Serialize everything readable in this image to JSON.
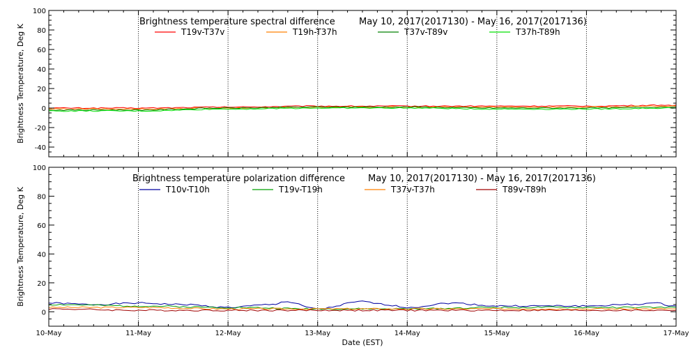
{
  "chart_data": [
    {
      "type": "line",
      "title": "Brightness temperature spectral difference",
      "subtitle": "May 10, 2017(2017130) - May 16, 2017(2017136)",
      "xlabel": "",
      "ylabel": "Brightness Temperature, Deg K",
      "xlim": [
        "2017-05-10",
        "2017-05-17"
      ],
      "ylim": [
        -50,
        100
      ],
      "yticks": [
        -40,
        -20,
        0,
        20,
        40,
        60,
        80,
        100
      ],
      "grid": "vertical dotted at each day",
      "legend": "top, horizontal",
      "series": [
        {
          "name": "T19v-T37v",
          "color": "#ff0000",
          "x": [
            "2017-05-10",
            "2017-05-11",
            "2017-05-12",
            "2017-05-13",
            "2017-05-14",
            "2017-05-15",
            "2017-05-16",
            "2017-05-17"
          ],
          "values": [
            0,
            0,
            1,
            2,
            2,
            2,
            2,
            3
          ]
        },
        {
          "name": "T19h-T37h",
          "color": "#ff8000",
          "x": [
            "2017-05-10",
            "2017-05-11",
            "2017-05-12",
            "2017-05-13",
            "2017-05-14",
            "2017-05-15",
            "2017-05-16",
            "2017-05-17"
          ],
          "values": [
            -1,
            -1,
            0,
            1,
            1,
            1,
            1,
            2
          ]
        },
        {
          "name": "T37v-T89v",
          "color": "#008000",
          "x": [
            "2017-05-10",
            "2017-05-11",
            "2017-05-12",
            "2017-05-13",
            "2017-05-14",
            "2017-05-15",
            "2017-05-16",
            "2017-05-17"
          ],
          "values": [
            -2,
            -2,
            0,
            1,
            1,
            0,
            0,
            1
          ]
        },
        {
          "name": "T37h-T89h",
          "color": "#00e000",
          "x": [
            "2017-05-10",
            "2017-05-11",
            "2017-05-12",
            "2017-05-13",
            "2017-05-14",
            "2017-05-15",
            "2017-05-16",
            "2017-05-17"
          ],
          "values": [
            -3,
            -3,
            -1,
            0,
            0,
            -1,
            -1,
            0
          ]
        }
      ]
    },
    {
      "type": "line",
      "title": "Brightness temperature polarization difference",
      "subtitle": "May 10, 2017(2017130) - May 16, 2017(2017136)",
      "xlabel": "Date (EST)",
      "ylabel": "Brightness Temperature, Deg K",
      "xlim": [
        "2017-05-10",
        "2017-05-17"
      ],
      "ylim": [
        -10,
        100
      ],
      "yticks": [
        0,
        20,
        40,
        60,
        80,
        100
      ],
      "xticks": [
        "10-May",
        "11-May",
        "12-May",
        "13-May",
        "14-May",
        "15-May",
        "16-May",
        "17-May"
      ],
      "grid": "vertical dotted at each day",
      "legend": "top, horizontal",
      "series": [
        {
          "name": "T10v-T10h",
          "color": "#0000a0",
          "x": [
            "2017-05-10",
            "2017-05-10 12:00",
            "2017-05-11",
            "2017-05-11 12:00",
            "2017-05-12",
            "2017-05-12 12:00",
            "2017-05-12 15:00",
            "2017-05-13",
            "2017-05-13 12:00",
            "2017-05-13 18:00",
            "2017-05-14",
            "2017-05-14 12:00",
            "2017-05-15",
            "2017-05-15 12:00",
            "2017-05-16",
            "2017-05-16 12:00",
            "2017-05-16 18:00",
            "2017-05-17"
          ],
          "values": [
            6,
            5,
            6,
            5,
            3,
            5,
            7,
            2,
            7,
            5,
            3,
            6,
            4,
            4,
            4,
            5,
            6,
            4
          ]
        },
        {
          "name": "T19v-T19h",
          "color": "#00a000",
          "x": [
            "2017-05-10",
            "2017-05-11",
            "2017-05-12",
            "2017-05-13",
            "2017-05-14",
            "2017-05-15",
            "2017-05-16",
            "2017-05-17"
          ],
          "values": [
            5,
            4,
            3,
            2,
            2,
            3,
            3,
            3
          ]
        },
        {
          "name": "T37v-T37h",
          "color": "#ff8000",
          "x": [
            "2017-05-10",
            "2017-05-11",
            "2017-05-12",
            "2017-05-13",
            "2017-05-14",
            "2017-05-15",
            "2017-05-16",
            "2017-05-17"
          ],
          "values": [
            3,
            3,
            2,
            2,
            2,
            2,
            2,
            2
          ]
        },
        {
          "name": "T89v-T89h",
          "color": "#a00000",
          "x": [
            "2017-05-10",
            "2017-05-11",
            "2017-05-12",
            "2017-05-13",
            "2017-05-14",
            "2017-05-15",
            "2017-05-16",
            "2017-05-17"
          ],
          "values": [
            2,
            1,
            1,
            1,
            1,
            1,
            1,
            1
          ]
        }
      ]
    }
  ]
}
